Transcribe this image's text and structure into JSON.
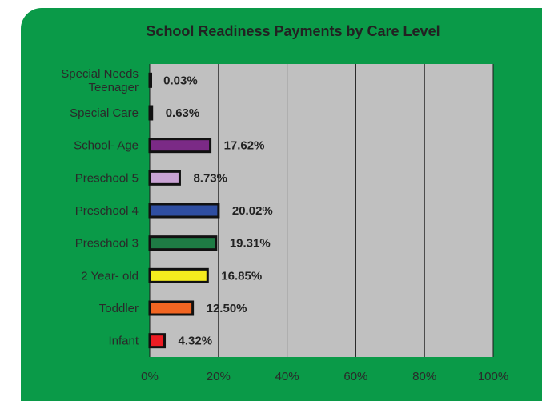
{
  "chart_data": {
    "type": "bar",
    "orientation": "horizontal",
    "title": "School Readiness Payments by Care Level",
    "xlabel": "",
    "ylabel": "",
    "xlim": [
      0,
      1
    ],
    "ticks": [
      "0%",
      "20%",
      "40%",
      "60%",
      "80%",
      "100%"
    ],
    "grid": true,
    "legend": "none",
    "plot_background": "#c0c0c0",
    "panel_background": "#0a9a48",
    "bars": [
      {
        "category": "Special Needs Teenager",
        "lines": [
          "Special Needs",
          "Teenager"
        ],
        "value": 0.0003,
        "label": "0.03%",
        "color": "#222222"
      },
      {
        "category": "Special Care",
        "lines": [
          "Special Care"
        ],
        "value": 0.0063,
        "label": "0.63%",
        "color": "#ee1c24"
      },
      {
        "category": "School- Age",
        "lines": [
          "School- Age"
        ],
        "value": 0.1762,
        "label": "17.62%",
        "color": "#7b2a86"
      },
      {
        "category": "Preschool 5",
        "lines": [
          "Preschool 5"
        ],
        "value": 0.0873,
        "label": "8.73%",
        "color": "#c9a3d4"
      },
      {
        "category": "Preschool 4",
        "lines": [
          "Preschool 4"
        ],
        "value": 0.2002,
        "label": "20.02%",
        "color": "#2f4ea1"
      },
      {
        "category": "Preschool 3",
        "lines": [
          "Preschool 3"
        ],
        "value": 0.1931,
        "label": "19.31%",
        "color": "#1e7b44"
      },
      {
        "category": "2 Year- old",
        "lines": [
          "2 Year- old"
        ],
        "value": 0.1685,
        "label": "16.85%",
        "color": "#f5ec1e"
      },
      {
        "category": "Toddler",
        "lines": [
          "Toddler"
        ],
        "value": 0.125,
        "label": "12.50%",
        "color": "#f26522"
      },
      {
        "category": "Infant",
        "lines": [
          "Infant"
        ],
        "value": 0.0432,
        "label": "4.32%",
        "color": "#ee1c24"
      }
    ]
  }
}
